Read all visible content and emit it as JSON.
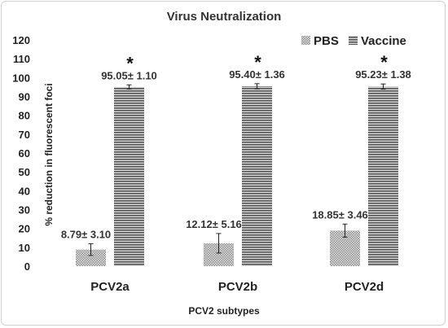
{
  "chart_data": {
    "type": "bar",
    "title": "Virus Neutralization",
    "xlabel": "PCV2 subtypes",
    "ylabel": "% reduction in fluorescent foci",
    "categories": [
      "PCV2a",
      "PCV2b",
      "PCV2d"
    ],
    "ylim": [
      0,
      120
    ],
    "yticks": [
      0,
      10,
      20,
      30,
      40,
      50,
      60,
      70,
      80,
      90,
      100,
      110,
      120
    ],
    "grid": false,
    "legend_position": "top-right",
    "series": [
      {
        "name": "PBS",
        "values": [
          8.79,
          12.12,
          18.85
        ],
        "errors": [
          3.1,
          5.16,
          3.46
        ],
        "labels": [
          "8.79± 3.10",
          "12.12± 5.16",
          "18.85± 3.46"
        ],
        "pattern": "dotted",
        "color": "#a9a9a9"
      },
      {
        "name": "Vaccine",
        "values": [
          95.05,
          95.4,
          95.23
        ],
        "errors": [
          1.1,
          1.36,
          1.38
        ],
        "labels": [
          "95.05± 1.10",
          "95.40± 1.36",
          "95.23± 1.38"
        ],
        "pattern": "horizontal-lines",
        "color": "#4d4d4d"
      }
    ],
    "annotations": [
      "*",
      "*",
      "*"
    ]
  }
}
